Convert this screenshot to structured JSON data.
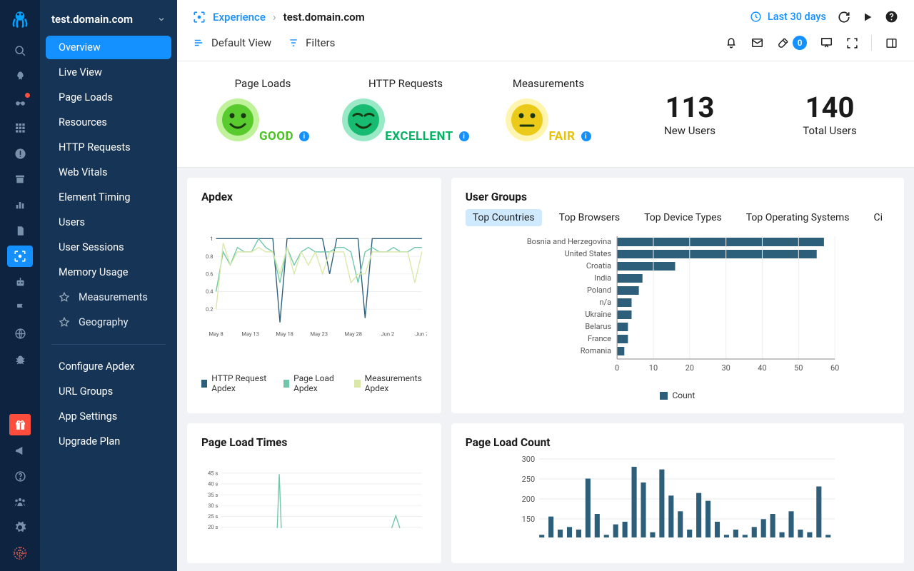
{
  "app_name": "test.domain.com",
  "breadcrumb": {
    "section": "Experience",
    "current": "test.domain.com"
  },
  "time_range": "Last 30 days",
  "toolbar": {
    "view": "Default View",
    "filters": "Filters",
    "badge_count": "0"
  },
  "nav": {
    "items": [
      "Overview",
      "Live View",
      "Page Loads",
      "Resources",
      "HTTP Requests",
      "Web Vitals",
      "Element Timing",
      "Users",
      "User Sessions",
      "Memory Usage"
    ],
    "sub": [
      "Measurements",
      "Geography"
    ],
    "settings": [
      "Configure Apdex",
      "URL Groups",
      "App Settings",
      "Upgrade Plan"
    ]
  },
  "kpis": [
    {
      "title": "Page Loads",
      "status": "GOOD",
      "color": "#46c41b",
      "bg": "#bff29a",
      "face": "smile"
    },
    {
      "title": "HTTP Requests",
      "status": "EXCELLENT",
      "color": "#00b463",
      "bg": "#9ae9c6",
      "face": "happy"
    },
    {
      "title": "Measurements",
      "status": "FAIR",
      "color": "#e8c200",
      "bg": "#fff4b0",
      "face": "neutral"
    }
  ],
  "stats": [
    {
      "value": "113",
      "label": "New Users"
    },
    {
      "value": "140",
      "label": "Total Users"
    }
  ],
  "apdex": {
    "title": "Apdex",
    "type": "line",
    "grid_color": "#e6e8eb",
    "ylim": [
      0,
      1
    ],
    "yticks": [
      0.2,
      0.4,
      0.6,
      0.8,
      1
    ],
    "xlabels": [
      "May 8",
      "May 13",
      "May 18",
      "May 23",
      "May 28",
      "Jun 2",
      "Jun 7"
    ],
    "legend": [
      "HTTP Request Apdex",
      "Page Load Apdex",
      "Measurements Apdex"
    ],
    "colors": [
      "#2e5f7a",
      "#6fc7a8",
      "#d9e8a8"
    ],
    "series": [
      [
        1,
        1,
        1,
        1,
        1,
        1,
        1,
        1,
        1,
        0.05,
        1,
        1,
        1,
        1,
        1,
        1,
        0.6,
        1,
        1,
        1,
        1,
        0.1,
        1,
        1,
        1,
        1,
        1,
        1,
        1,
        1
      ],
      [
        0.4,
        0.85,
        0.7,
        0.9,
        0.85,
        0.85,
        1,
        0.9,
        0.85,
        0.5,
        0.9,
        0.7,
        0.85,
        0.9,
        0.85,
        0.85,
        0.85,
        0.9,
        0.9,
        0.85,
        0.5,
        0.85,
        0.9,
        0.85,
        0.85,
        0.9,
        0.85,
        0.85,
        0.9,
        0.9
      ],
      [
        0.2,
        0.95,
        0.7,
        0.85,
        0.85,
        0.85,
        0.9,
        0.85,
        0.85,
        0.6,
        0.9,
        0.6,
        0.85,
        0.7,
        0.85,
        0.6,
        0.85,
        0.85,
        0.85,
        0.5,
        0.6,
        0.6,
        0.85,
        0.85,
        0.85,
        0.85,
        0.85,
        0.85,
        0.5,
        0.85
      ]
    ]
  },
  "user_groups": {
    "title": "User Groups",
    "type": "bar-horizontal",
    "tabs": [
      "Top Countries",
      "Top Browsers",
      "Top Device Types",
      "Top Operating Systems",
      "Ci"
    ],
    "xlabel": "Count",
    "xlim": [
      0,
      60
    ],
    "xticks": [
      0,
      10,
      20,
      30,
      40,
      50,
      60
    ],
    "bar_color": "#2e5f7a",
    "rows": [
      {
        "label": "Bosnia and Herzegovina",
        "value": 57
      },
      {
        "label": "United States",
        "value": 55
      },
      {
        "label": "Croatia",
        "value": 16
      },
      {
        "label": "India",
        "value": 7
      },
      {
        "label": "Poland",
        "value": 6
      },
      {
        "label": "n/a",
        "value": 4
      },
      {
        "label": "Ukraine",
        "value": 4
      },
      {
        "label": "Belarus",
        "value": 3
      },
      {
        "label": "France",
        "value": 3
      },
      {
        "label": "Romania",
        "value": 2
      }
    ]
  },
  "plt": {
    "title": "Page Load Times",
    "type": "line",
    "grid_color": "#e6e8eb",
    "yticks": [
      "45 s",
      "40 s",
      "35 s",
      "30 s",
      "25 s",
      "20 s"
    ],
    "colors": [
      "#6fc7a8",
      "#2e5f7a",
      "#d9e8a8"
    ]
  },
  "plc": {
    "title": "Page Load Count",
    "type": "bar",
    "bar_color": "#2e5f7a",
    "grid_color": "#e6e8eb",
    "ylim": [
      0,
      300
    ],
    "yticks": [
      300,
      250,
      200,
      150
    ],
    "values": [
      10,
      80,
      30,
      40,
      30,
      225,
      90,
      10,
      50,
      60,
      270,
      210,
      20,
      260,
      160,
      100,
      30,
      170,
      140,
      60,
      10,
      30,
      10,
      40,
      70,
      90,
      20,
      100,
      30,
      20,
      195,
      10
    ]
  }
}
